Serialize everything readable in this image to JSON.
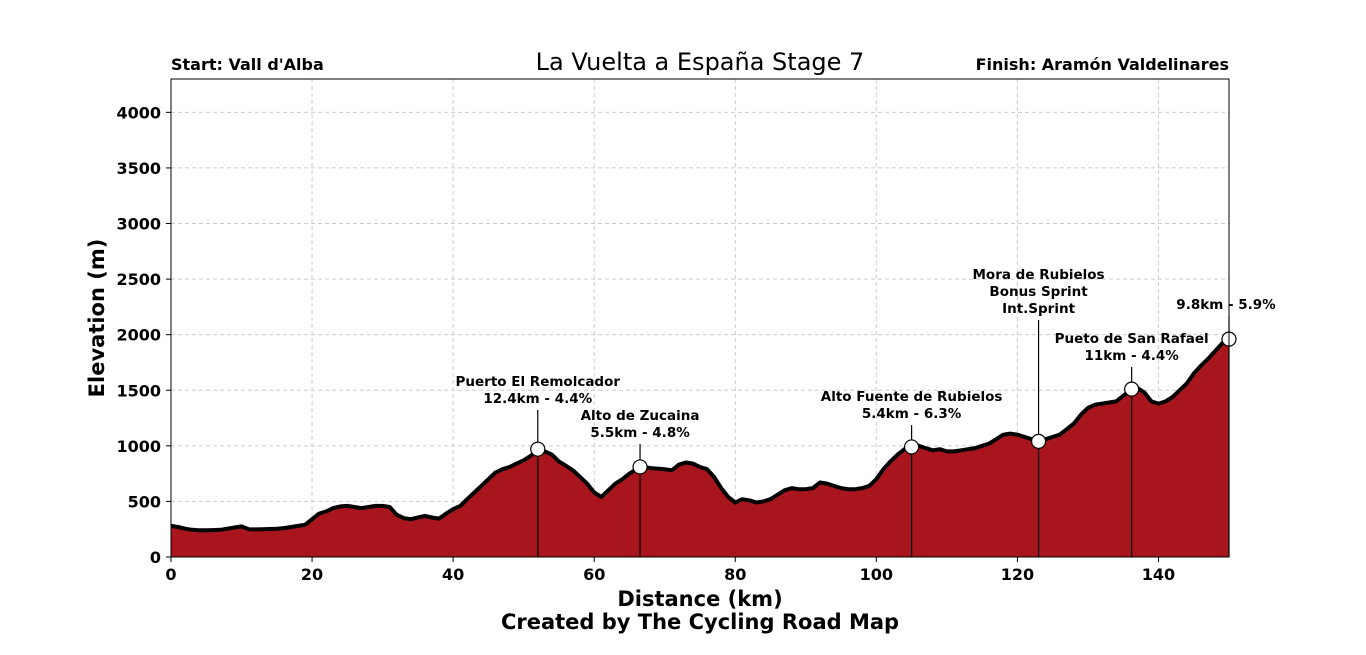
{
  "chart_data": {
    "type": "area",
    "title": "La Vuelta a España Stage 7",
    "start_label": "Start: Vall d'Alba",
    "finish_label": "Finish: Aramón Valdelinares",
    "xlabel": "Distance (km)",
    "ylabel": "Elevation (m)",
    "credit": "Created by The Cycling Road Map",
    "xlim": [
      0,
      150
    ],
    "ylim": [
      0,
      4300
    ],
    "xticks": [
      0,
      20,
      40,
      60,
      80,
      100,
      120,
      140
    ],
    "yticks": [
      0,
      500,
      1000,
      1500,
      2000,
      2500,
      3000,
      3500,
      4000
    ],
    "grid": true,
    "fill_color": "#a8151d",
    "line_color": "#000000",
    "profile": {
      "x": [
        0,
        1,
        2,
        3,
        4,
        5,
        6,
        7,
        8,
        9,
        10,
        11,
        12,
        13,
        14,
        15,
        16,
        17,
        18,
        19,
        20,
        21,
        22,
        23,
        24,
        25,
        26,
        27,
        28,
        29,
        30,
        31,
        32,
        33,
        34,
        35,
        36,
        37,
        38,
        39,
        40,
        41,
        42,
        43,
        44,
        45,
        46,
        47,
        48,
        49,
        50,
        51,
        52,
        53,
        54,
        55,
        56,
        57,
        58,
        59,
        60,
        61,
        62,
        63,
        64,
        65,
        66,
        67,
        68,
        69,
        70,
        71,
        72,
        73,
        74,
        75,
        76,
        77,
        78,
        79,
        80,
        81,
        82,
        83,
        84,
        85,
        86,
        87,
        88,
        89,
        90,
        91,
        92,
        93,
        94,
        95,
        96,
        97,
        98,
        99,
        100,
        101,
        102,
        103,
        104,
        105,
        106,
        107,
        108,
        109,
        110,
        111,
        112,
        113,
        114,
        115,
        116,
        117,
        118,
        119,
        120,
        121,
        122,
        123,
        124,
        125,
        126,
        127,
        128,
        129,
        130,
        131,
        132,
        133,
        134,
        135,
        136,
        137,
        138,
        139,
        140,
        141,
        142,
        143,
        144,
        145,
        146,
        147,
        148,
        149,
        150
      ],
      "y": [
        280,
        270,
        255,
        245,
        240,
        240,
        242,
        245,
        255,
        265,
        275,
        250,
        248,
        250,
        252,
        255,
        260,
        270,
        280,
        290,
        340,
        390,
        410,
        440,
        455,
        460,
        450,
        440,
        450,
        460,
        460,
        450,
        380,
        350,
        340,
        355,
        370,
        355,
        345,
        390,
        430,
        460,
        520,
        580,
        640,
        700,
        760,
        790,
        810,
        840,
        870,
        910,
        960,
        950,
        920,
        860,
        820,
        780,
        720,
        660,
        580,
        540,
        600,
        660,
        700,
        750,
        790,
        810,
        800,
        795,
        790,
        780,
        830,
        850,
        840,
        810,
        790,
        720,
        620,
        540,
        490,
        520,
        510,
        490,
        500,
        520,
        560,
        600,
        620,
        610,
        610,
        620,
        670,
        660,
        640,
        620,
        610,
        610,
        620,
        640,
        700,
        790,
        860,
        920,
        970,
        990,
        1000,
        980,
        960,
        970,
        950,
        950,
        960,
        970,
        980,
        1000,
        1020,
        1060,
        1100,
        1110,
        1100,
        1080,
        1060,
        1040,
        1060,
        1080,
        1100,
        1150,
        1200,
        1280,
        1340,
        1370,
        1380,
        1390,
        1400,
        1450,
        1500,
        1520,
        1480,
        1400,
        1380,
        1400,
        1440,
        1500,
        1560,
        1650,
        1720,
        1780,
        1850,
        1920,
        1960
      ]
    },
    "climbs": [
      {
        "name": "Puerto El Remolcador",
        "detail": "12.4km - 4.4%",
        "x": 52,
        "y": 970
      },
      {
        "name": "Alto de Zucaina",
        "detail": "5.5km - 4.8%",
        "x": 66.5,
        "y": 810
      },
      {
        "name": "Alto Fuente de Rubielos",
        "detail": "5.4km - 6.3%",
        "x": 105,
        "y": 990
      },
      {
        "name": "Mora de Rubielos",
        "detail": "Bonus Sprint",
        "detail2": "Int.Sprint",
        "x": 123,
        "y": 1040
      },
      {
        "name": "Pueto de San Rafael",
        "detail": "11km  - 4.4%",
        "x": 136.2,
        "y": 1510
      },
      {
        "name": "",
        "detail": "9.8km  - 5.9%",
        "x": 150,
        "y": 1960
      }
    ]
  }
}
